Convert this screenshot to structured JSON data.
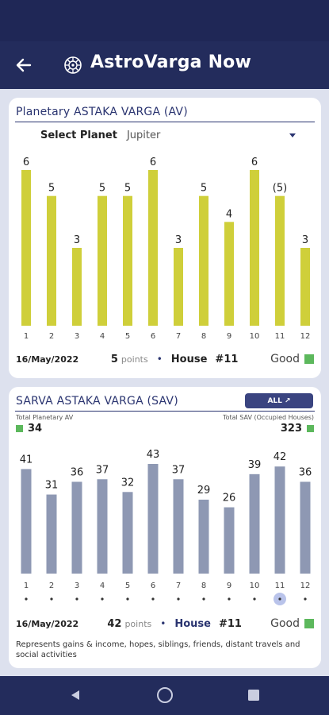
{
  "app": {
    "title": "AstroVarga Now"
  },
  "av_card": {
    "title": "Planetary ASTAKA VARGA (AV)",
    "select_label": "Select Planet",
    "selected_planet": "Jupiter",
    "date": "16/May/2022",
    "points": "5",
    "points_label": "points",
    "house_label": "House",
    "house_value": "#11",
    "status": "Good",
    "status_color": "#5cb85c"
  },
  "sav_card": {
    "title": "SARVA ASTAKA VARGA (SAV)",
    "all_button": "ALL ↗",
    "total_planetary_label": "Total Planetary AV",
    "total_planetary_value": "34",
    "total_sav_label": "Total SAV (Occupied Houses)",
    "total_sav_value": "323",
    "date": "16/May/2022",
    "points": "42",
    "points_label": "points",
    "house_label": "House",
    "house_value": "#11",
    "status": "Good",
    "description": "Represents gains & income, hopes, siblings, friends, distant travels and social activities"
  },
  "colors": {
    "av_bar": "#cfcf3a",
    "sav_bar": "#8e98b3",
    "primary": "#232c5c",
    "good": "#5cb85c",
    "selected_marker": "#b9c3ea"
  },
  "chart_data": [
    {
      "type": "bar",
      "title": "Planetary ASTAKA VARGA (AV)",
      "categories": [
        "1",
        "2",
        "3",
        "4",
        "5",
        "6",
        "7",
        "8",
        "9",
        "10",
        "11",
        "12"
      ],
      "values": [
        6,
        5,
        3,
        5,
        5,
        6,
        3,
        5,
        4,
        6,
        5,
        3
      ],
      "value_labels": [
        "6",
        "5",
        "3",
        "5",
        "5",
        "6",
        "3",
        "5",
        "4",
        "6",
        "(5)",
        "3"
      ],
      "highlighted_category": "11",
      "ylim": [
        0,
        6
      ]
    },
    {
      "type": "bar",
      "title": "SARVA ASTAKA VARGA (SAV)",
      "categories": [
        "1",
        "2",
        "3",
        "4",
        "5",
        "6",
        "7",
        "8",
        "9",
        "10",
        "11",
        "12"
      ],
      "values": [
        41,
        31,
        36,
        37,
        32,
        43,
        37,
        29,
        26,
        39,
        42,
        36
      ],
      "highlighted_category": "11",
      "ylim": [
        0,
        43
      ]
    }
  ],
  "nav": {
    "back": "back-icon",
    "home": "home-icon",
    "recents": "recents-icon"
  }
}
